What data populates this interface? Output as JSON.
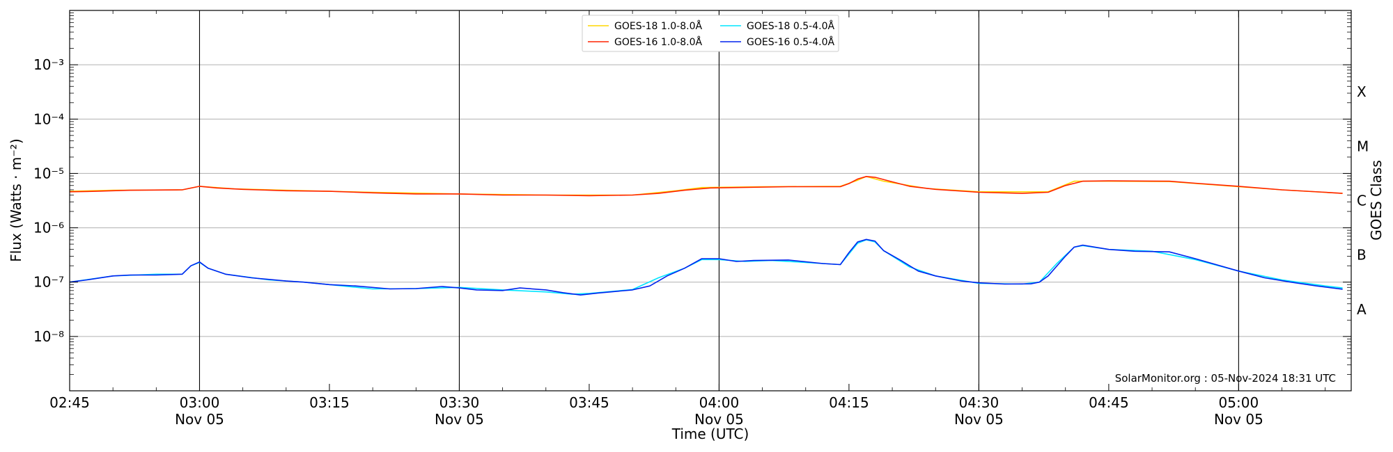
{
  "chart_data": {
    "type": "line",
    "xlabel": "Time (UTC)",
    "ylabel": "Flux (Watts · m⁻²)",
    "ylabel_right": "GOES Class",
    "yscale": "log",
    "xlim": [
      "02:45",
      "05:13"
    ],
    "ylim": [
      1e-09,
      0.01
    ],
    "x_ticks": [
      {
        "t": "02:45",
        "line1": "02:45",
        "line2": ""
      },
      {
        "t": "03:00",
        "line1": "03:00",
        "line2": "Nov 05"
      },
      {
        "t": "03:15",
        "line1": "03:15",
        "line2": ""
      },
      {
        "t": "03:30",
        "line1": "03:30",
        "line2": "Nov 05"
      },
      {
        "t": "03:45",
        "line1": "03:45",
        "line2": ""
      },
      {
        "t": "04:00",
        "line1": "04:00",
        "line2": "Nov 05"
      },
      {
        "t": "04:15",
        "line1": "04:15",
        "line2": ""
      },
      {
        "t": "04:30",
        "line1": "04:30",
        "line2": "Nov 05"
      },
      {
        "t": "04:45",
        "line1": "04:45",
        "line2": ""
      },
      {
        "t": "05:00",
        "line1": "05:00",
        "line2": "Nov 05"
      }
    ],
    "vertical_lines": [
      "03:00",
      "03:30",
      "04:00",
      "04:30",
      "05:00"
    ],
    "y_ticks": [
      {
        "exp": -8,
        "label": "10⁻⁸"
      },
      {
        "exp": -7,
        "label": "10⁻⁷"
      },
      {
        "exp": -6,
        "label": "10⁻⁶"
      },
      {
        "exp": -5,
        "label": "10⁻⁵"
      },
      {
        "exp": -4,
        "label": "10⁻⁴"
      },
      {
        "exp": -3,
        "label": "10⁻³"
      }
    ],
    "goes_classes": [
      {
        "label": "A",
        "exp": -7.5
      },
      {
        "label": "B",
        "exp": -6.5
      },
      {
        "label": "C",
        "exp": -5.5
      },
      {
        "label": "M",
        "exp": -4.5
      },
      {
        "label": "X",
        "exp": -3.5
      }
    ],
    "grid": true,
    "legend_position": "top-center",
    "annotation": "SolarMonitor.org : 05-Nov-2024 18:31 UTC",
    "series": [
      {
        "name": "GOES-18 1.0-8.0Å",
        "color": "#ffd700",
        "points": [
          [
            "02:45",
            4.7e-06
          ],
          [
            "02:50",
            4.9e-06
          ],
          [
            "02:58",
            5e-06
          ],
          [
            "03:00",
            5.8e-06
          ],
          [
            "03:04",
            5.2e-06
          ],
          [
            "03:10",
            4.9e-06
          ],
          [
            "03:20",
            4.5e-06
          ],
          [
            "03:30",
            4.2e-06
          ],
          [
            "03:40",
            4e-06
          ],
          [
            "03:50",
            4e-06
          ],
          [
            "03:55",
            4.8e-06
          ],
          [
            "03:58",
            5.5e-06
          ],
          [
            "04:05",
            5.7e-06
          ],
          [
            "04:14",
            5.8e-06
          ],
          [
            "04:16",
            7.5e-06
          ],
          [
            "04:17",
            8.8e-06
          ],
          [
            "04:19",
            7.2e-06
          ],
          [
            "04:24",
            5.3e-06
          ],
          [
            "04:30",
            4.6e-06
          ],
          [
            "04:38",
            4.6e-06
          ],
          [
            "04:41",
            7.2e-06
          ],
          [
            "04:45",
            7.2e-06
          ],
          [
            "04:52",
            7.1e-06
          ],
          [
            "05:00",
            5.7e-06
          ],
          [
            "05:05",
            5e-06
          ],
          [
            "05:12",
            4.3e-06
          ]
        ]
      },
      {
        "name": "GOES-16 1.0-8.0Å",
        "color": "#ff2200",
        "points": [
          [
            "02:45",
            4.6e-06
          ],
          [
            "02:48",
            4.7e-06
          ],
          [
            "02:52",
            4.9e-06
          ],
          [
            "02:58",
            5e-06
          ],
          [
            "03:00",
            5.8e-06
          ],
          [
            "03:02",
            5.4e-06
          ],
          [
            "03:05",
            5.1e-06
          ],
          [
            "03:10",
            4.8e-06
          ],
          [
            "03:15",
            4.7e-06
          ],
          [
            "03:20",
            4.4e-06
          ],
          [
            "03:25",
            4.2e-06
          ],
          [
            "03:30",
            4.2e-06
          ],
          [
            "03:35",
            4e-06
          ],
          [
            "03:40",
            4e-06
          ],
          [
            "03:45",
            3.9e-06
          ],
          [
            "03:50",
            4e-06
          ],
          [
            "03:53",
            4.3e-06
          ],
          [
            "03:56",
            4.9e-06
          ],
          [
            "03:59",
            5.4e-06
          ],
          [
            "04:02",
            5.5e-06
          ],
          [
            "04:08",
            5.7e-06
          ],
          [
            "04:14",
            5.7e-06
          ],
          [
            "04:15",
            6.5e-06
          ],
          [
            "04:16",
            7.9e-06
          ],
          [
            "04:17",
            8.8e-06
          ],
          [
            "04:18",
            8.5e-06
          ],
          [
            "04:20",
            7e-06
          ],
          [
            "04:22",
            5.8e-06
          ],
          [
            "04:25",
            5.1e-06
          ],
          [
            "04:30",
            4.5e-06
          ],
          [
            "04:35",
            4.3e-06
          ],
          [
            "04:38",
            4.5e-06
          ],
          [
            "04:40",
            6e-06
          ],
          [
            "04:42",
            7.2e-06
          ],
          [
            "04:45",
            7.3e-06
          ],
          [
            "04:52",
            7.2e-06
          ],
          [
            "04:55",
            6.6e-06
          ],
          [
            "05:00",
            5.8e-06
          ],
          [
            "05:05",
            5e-06
          ],
          [
            "05:10",
            4.5e-06
          ],
          [
            "05:12",
            4.3e-06
          ]
        ]
      },
      {
        "name": "GOES-18 0.5-4.0Å",
        "color": "#00e5ff",
        "points": [
          [
            "02:45",
            1e-07
          ],
          [
            "02:50",
            1.3e-07
          ],
          [
            "02:55",
            1.4e-07
          ],
          [
            "02:58",
            1.4e-07
          ],
          [
            "02:59",
            2e-07
          ],
          [
            "03:00",
            2.3e-07
          ],
          [
            "03:01",
            1.8e-07
          ],
          [
            "03:03",
            1.4e-07
          ],
          [
            "03:08",
            1.1e-07
          ],
          [
            "03:12",
            1e-07
          ],
          [
            "03:15",
            9e-08
          ],
          [
            "03:20",
            7.5e-08
          ],
          [
            "03:25",
            7.6e-08
          ],
          [
            "03:30",
            8e-08
          ],
          [
            "03:35",
            7.2e-08
          ],
          [
            "03:40",
            6.6e-08
          ],
          [
            "03:43",
            6e-08
          ],
          [
            "03:45",
            6.2e-08
          ],
          [
            "03:50",
            7.3e-08
          ],
          [
            "03:53",
            1.2e-07
          ],
          [
            "03:56",
            1.8e-07
          ],
          [
            "03:58",
            2.6e-07
          ],
          [
            "04:00",
            2.6e-07
          ],
          [
            "04:03",
            2.4e-07
          ],
          [
            "04:06",
            2.5e-07
          ],
          [
            "04:10",
            2.3e-07
          ],
          [
            "04:14",
            2.1e-07
          ],
          [
            "04:16",
            5.2e-07
          ],
          [
            "04:17",
            6e-07
          ],
          [
            "04:18",
            5.5e-07
          ],
          [
            "04:19",
            3.8e-07
          ],
          [
            "04:22",
            1.9e-07
          ],
          [
            "04:25",
            1.3e-07
          ],
          [
            "04:30",
            9.5e-08
          ],
          [
            "04:35",
            9.2e-08
          ],
          [
            "04:37",
            1e-07
          ],
          [
            "04:39",
            2.2e-07
          ],
          [
            "04:41",
            4.4e-07
          ],
          [
            "04:42",
            4.7e-07
          ],
          [
            "04:45",
            4e-07
          ],
          [
            "04:50",
            3.7e-07
          ],
          [
            "04:55",
            2.6e-07
          ],
          [
            "05:00",
            1.6e-07
          ],
          [
            "05:05",
            1.1e-07
          ],
          [
            "05:10",
            8.5e-08
          ],
          [
            "05:12",
            7.8e-08
          ]
        ]
      },
      {
        "name": "GOES-16 0.5-4.0Å",
        "color": "#0022ee",
        "points": [
          [
            "02:45",
            1e-07
          ],
          [
            "02:47",
            1.1e-07
          ],
          [
            "02:50",
            1.3e-07
          ],
          [
            "02:52",
            1.35e-07
          ],
          [
            "02:55",
            1.35e-07
          ],
          [
            "02:58",
            1.4e-07
          ],
          [
            "02:59",
            2e-07
          ],
          [
            "03:00",
            2.35e-07
          ],
          [
            "03:01",
            1.8e-07
          ],
          [
            "03:03",
            1.4e-07
          ],
          [
            "03:06",
            1.2e-07
          ],
          [
            "03:10",
            1.05e-07
          ],
          [
            "03:12",
            1e-07
          ],
          [
            "03:15",
            9e-08
          ],
          [
            "03:18",
            8.5e-08
          ],
          [
            "03:22",
            7.5e-08
          ],
          [
            "03:25",
            7.6e-08
          ],
          [
            "03:28",
            8.3e-08
          ],
          [
            "03:30",
            7.8e-08
          ],
          [
            "03:32",
            7.2e-08
          ],
          [
            "03:35",
            7e-08
          ],
          [
            "03:37",
            7.8e-08
          ],
          [
            "03:40",
            7.2e-08
          ],
          [
            "03:42",
            6.4e-08
          ],
          [
            "03:44",
            5.8e-08
          ],
          [
            "03:46",
            6.3e-08
          ],
          [
            "03:50",
            7.2e-08
          ],
          [
            "03:52",
            8.5e-08
          ],
          [
            "03:54",
            1.3e-07
          ],
          [
            "03:56",
            1.8e-07
          ],
          [
            "03:58",
            2.7e-07
          ],
          [
            "04:00",
            2.7e-07
          ],
          [
            "04:02",
            2.4e-07
          ],
          [
            "04:04",
            2.5e-07
          ],
          [
            "04:08",
            2.55e-07
          ],
          [
            "04:12",
            2.2e-07
          ],
          [
            "04:14",
            2.1e-07
          ],
          [
            "04:15",
            3.5e-07
          ],
          [
            "04:16",
            5.5e-07
          ],
          [
            "04:17",
            6.1e-07
          ],
          [
            "04:18",
            5.7e-07
          ],
          [
            "04:19",
            3.8e-07
          ],
          [
            "04:21",
            2.5e-07
          ],
          [
            "04:23",
            1.6e-07
          ],
          [
            "04:25",
            1.3e-07
          ],
          [
            "04:28",
            1.05e-07
          ],
          [
            "04:30",
            9.7e-08
          ],
          [
            "04:33",
            9.2e-08
          ],
          [
            "04:36",
            9.3e-08
          ],
          [
            "04:37",
            1e-07
          ],
          [
            "04:38",
            1.3e-07
          ],
          [
            "04:40",
            3e-07
          ],
          [
            "04:41",
            4.4e-07
          ],
          [
            "04:42",
            4.8e-07
          ],
          [
            "04:45",
            4e-07
          ],
          [
            "04:48",
            3.7e-07
          ],
          [
            "04:52",
            3.6e-07
          ],
          [
            "04:55",
            2.7e-07
          ],
          [
            "05:00",
            1.6e-07
          ],
          [
            "05:03",
            1.2e-07
          ],
          [
            "05:06",
            1e-07
          ],
          [
            "05:09",
            8.5e-08
          ],
          [
            "05:12",
            7.4e-08
          ]
        ]
      }
    ]
  }
}
